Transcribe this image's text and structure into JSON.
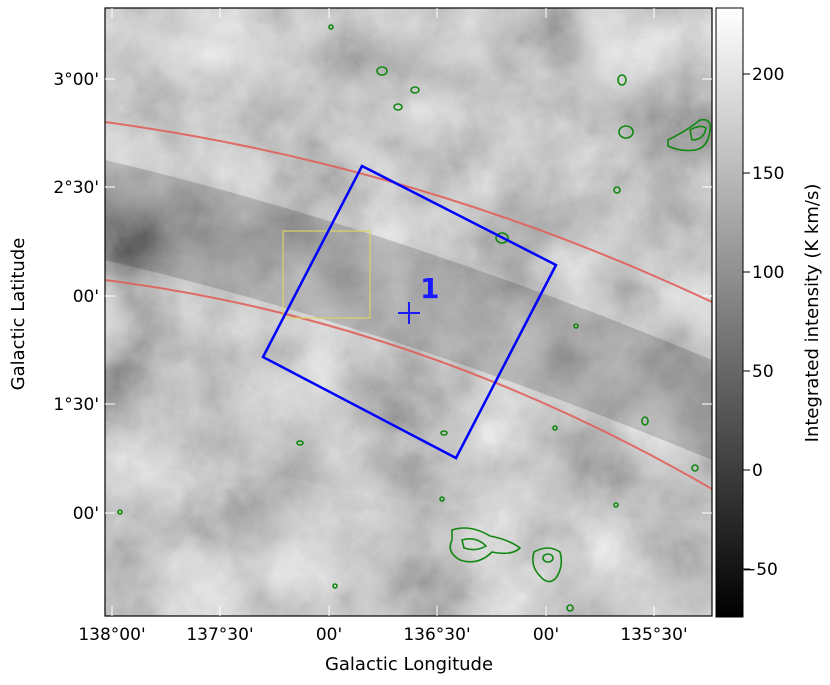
{
  "chart_data": {
    "type": "heatmap",
    "title": "",
    "xlabel": "Galactic Longitude",
    "ylabel": "Galactic Latitude",
    "x_ticks": [
      "138°00'",
      "137°30'",
      "00'",
      "136°30'",
      "00'",
      "135°30'"
    ],
    "x_tick_values": [
      138.0,
      137.5,
      137.0,
      136.5,
      136.0,
      135.5
    ],
    "y_ticks": [
      "3°00'",
      "2°30'",
      "00'",
      "1°30'",
      "00'"
    ],
    "y_tick_values": [
      3.0,
      2.5,
      2.0,
      1.5,
      1.0
    ],
    "xlim": [
      138.04,
      135.34
    ],
    "ylim": [
      0.53,
      3.33
    ],
    "colorbar": {
      "label": "Integrated intensity (K km/s)",
      "ticks": [
        "200",
        "150",
        "100",
        "50",
        "0",
        "−50"
      ],
      "tick_values": [
        200,
        150,
        100,
        50,
        0,
        -50
      ],
      "range": [
        -75,
        232
      ],
      "colormap": "gray"
    },
    "overlays": {
      "region_label": "1",
      "region_label_color": "#1a1aff",
      "box_color": "#0000ff",
      "small_box_color": "#d9d36a",
      "band_color": "#e0605a",
      "contour_color": "#118811"
    }
  }
}
